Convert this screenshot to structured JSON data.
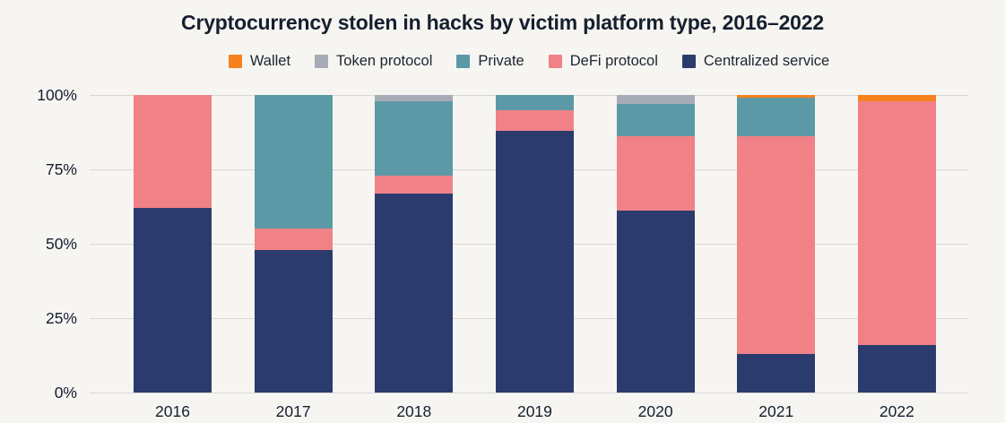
{
  "title": "Cryptocurrency stolen in hacks by victim platform type, 2016–2022",
  "colors": {
    "background": "#f6f5f2",
    "gridline": "#d8d7d3",
    "text": "#141e2e",
    "wallet": "#f5821f",
    "token_protocol": "#a6abb6",
    "private": "#5c99a6",
    "defi_protocol": "#f08287",
    "centralized_service": "#2b3b6d"
  },
  "chart_data": {
    "type": "bar",
    "stacked": true,
    "unit": "percent",
    "title": "Cryptocurrency stolen in hacks by victim platform type, 2016–2022",
    "categories": [
      "2016",
      "2017",
      "2018",
      "2019",
      "2020",
      "2021",
      "2022"
    ],
    "series": [
      {
        "name": "Wallet",
        "color": "#f5821f",
        "values": [
          0,
          0,
          0,
          0,
          0,
          1,
          2
        ]
      },
      {
        "name": "Token protocol",
        "color": "#a6abb6",
        "values": [
          0,
          0,
          2,
          0,
          3,
          0,
          0
        ]
      },
      {
        "name": "Private",
        "color": "#5c99a6",
        "values": [
          0,
          45,
          25,
          5,
          11,
          13,
          0
        ]
      },
      {
        "name": "DeFi protocol",
        "color": "#f08287",
        "values": [
          38,
          7,
          6,
          7,
          25,
          73,
          82
        ]
      },
      {
        "name": "Centralized service",
        "color": "#2b3b6d",
        "values": [
          62,
          48,
          67,
          88,
          61,
          13,
          16
        ]
      }
    ],
    "stacking_order_bottom_to_top": [
      "Centralized service",
      "DeFi protocol",
      "Private",
      "Token protocol",
      "Wallet"
    ],
    "xlabel": "",
    "ylabel": "",
    "ylim": [
      0,
      100
    ],
    "yticks": [
      "0%",
      "25%",
      "50%",
      "75%",
      "100%"
    ],
    "grid": true,
    "legend_position": "top"
  }
}
